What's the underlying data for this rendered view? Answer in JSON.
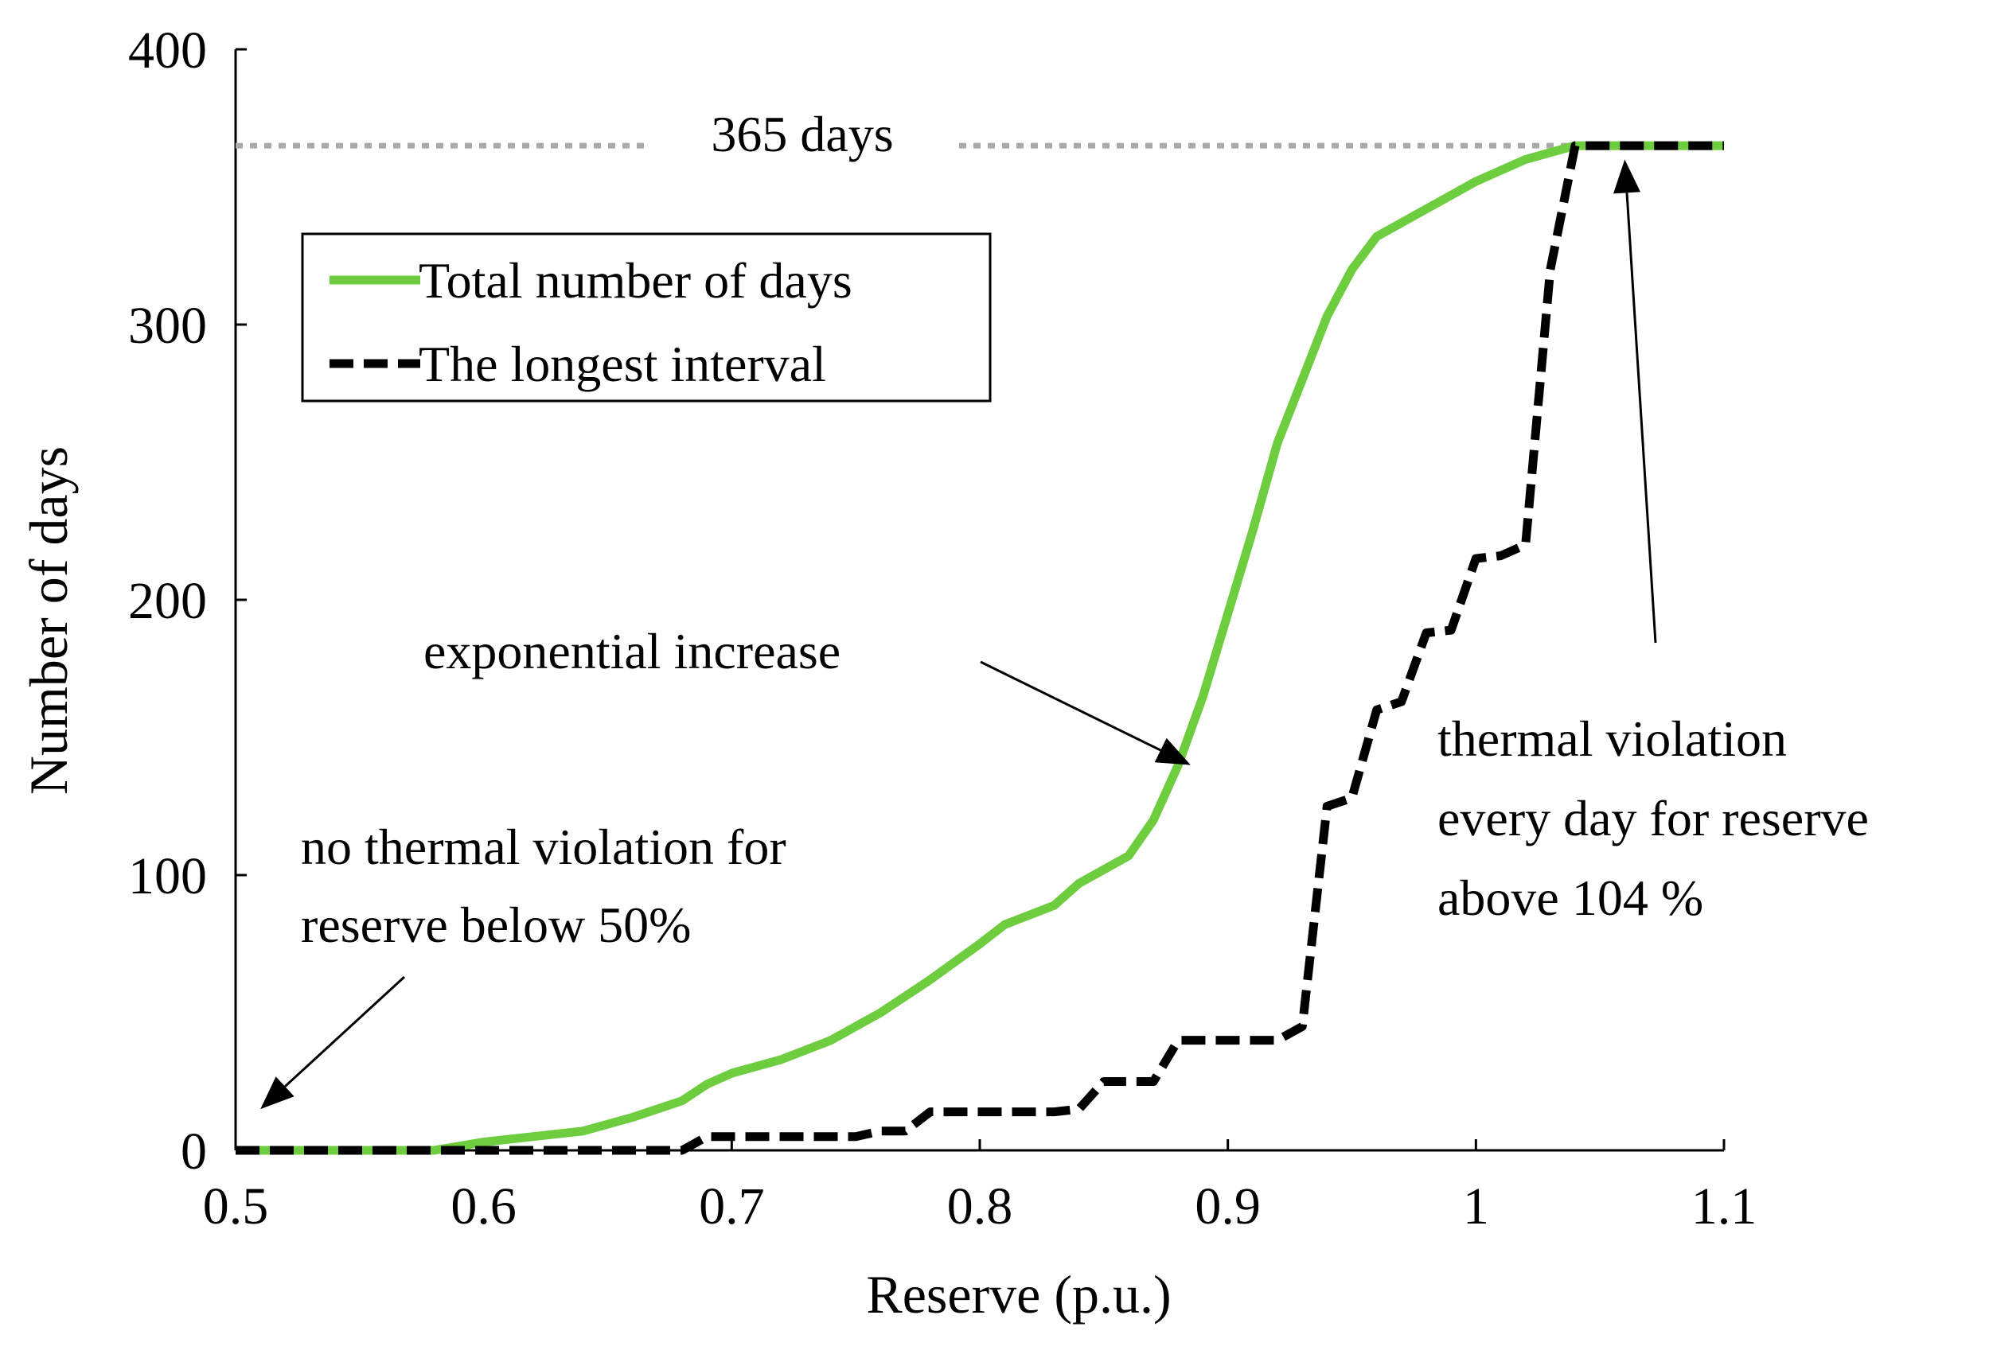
{
  "chart_data": {
    "type": "line",
    "title": "",
    "xlabel": "Reserve (p.u.)",
    "ylabel": "Number of days",
    "xlim": [
      0.5,
      1.1
    ],
    "ylim": [
      0,
      400
    ],
    "x_ticks": [
      0.5,
      0.6,
      0.7,
      0.8,
      0.9,
      1.0,
      1.1
    ],
    "x_tick_labels": [
      "0.5",
      "0.6",
      "0.7",
      "0.8",
      "0.9",
      "1",
      "1.1"
    ],
    "y_ticks": [
      0,
      100,
      200,
      300,
      400
    ],
    "y_tick_labels": [
      "0",
      "100",
      "200",
      "300",
      "400"
    ],
    "grid": false,
    "legend_position": "upper-left",
    "reference_line": {
      "y": 365,
      "label": "365 days",
      "color": "#aaaaaa"
    },
    "series": [
      {
        "name": "Total number of days",
        "color": "#6dcd3f",
        "style": "solid",
        "points": [
          [
            0.5,
            0
          ],
          [
            0.58,
            0
          ],
          [
            0.6,
            3
          ],
          [
            0.62,
            5
          ],
          [
            0.64,
            7
          ],
          [
            0.66,
            12
          ],
          [
            0.68,
            18
          ],
          [
            0.69,
            24
          ],
          [
            0.7,
            28
          ],
          [
            0.72,
            33
          ],
          [
            0.74,
            40
          ],
          [
            0.76,
            50
          ],
          [
            0.78,
            62
          ],
          [
            0.8,
            75
          ],
          [
            0.81,
            82
          ],
          [
            0.83,
            89
          ],
          [
            0.84,
            97
          ],
          [
            0.86,
            107
          ],
          [
            0.87,
            120
          ],
          [
            0.88,
            140
          ],
          [
            0.89,
            165
          ],
          [
            0.9,
            195
          ],
          [
            0.91,
            225
          ],
          [
            0.92,
            257
          ],
          [
            0.93,
            280
          ],
          [
            0.94,
            303
          ],
          [
            0.95,
            320
          ],
          [
            0.96,
            332
          ],
          [
            0.98,
            342
          ],
          [
            1.0,
            352
          ],
          [
            1.02,
            360
          ],
          [
            1.04,
            365
          ],
          [
            1.1,
            365
          ]
        ]
      },
      {
        "name": "The longest interval",
        "color": "#000000",
        "style": "dashed",
        "points": [
          [
            0.5,
            0
          ],
          [
            0.68,
            0
          ],
          [
            0.69,
            5
          ],
          [
            0.75,
            5
          ],
          [
            0.76,
            7
          ],
          [
            0.77,
            7
          ],
          [
            0.78,
            14
          ],
          [
            0.83,
            14
          ],
          [
            0.84,
            15
          ],
          [
            0.85,
            25
          ],
          [
            0.87,
            25
          ],
          [
            0.88,
            40
          ],
          [
            0.92,
            40
          ],
          [
            0.93,
            45
          ],
          [
            0.94,
            125
          ],
          [
            0.95,
            128
          ],
          [
            0.96,
            160
          ],
          [
            0.97,
            163
          ],
          [
            0.98,
            188
          ],
          [
            0.99,
            189
          ],
          [
            1.0,
            215
          ],
          [
            1.01,
            216
          ],
          [
            1.02,
            220
          ],
          [
            1.03,
            320
          ],
          [
            1.04,
            365
          ],
          [
            1.1,
            365
          ]
        ]
      }
    ],
    "annotations": [
      {
        "id": "exp",
        "lines": [
          "exponential increase"
        ],
        "arrow_tip": [
          0.885,
          140
        ]
      },
      {
        "id": "no-viol",
        "lines": [
          "no thermal violation for",
          "reserve below 50%"
        ],
        "arrow_tip": [
          0.51,
          15
        ]
      },
      {
        "id": "every-day",
        "lines": [
          "thermal violation",
          "every day for reserve",
          "above 104 %"
        ],
        "arrow_tip": [
          1.06,
          360
        ]
      }
    ]
  }
}
